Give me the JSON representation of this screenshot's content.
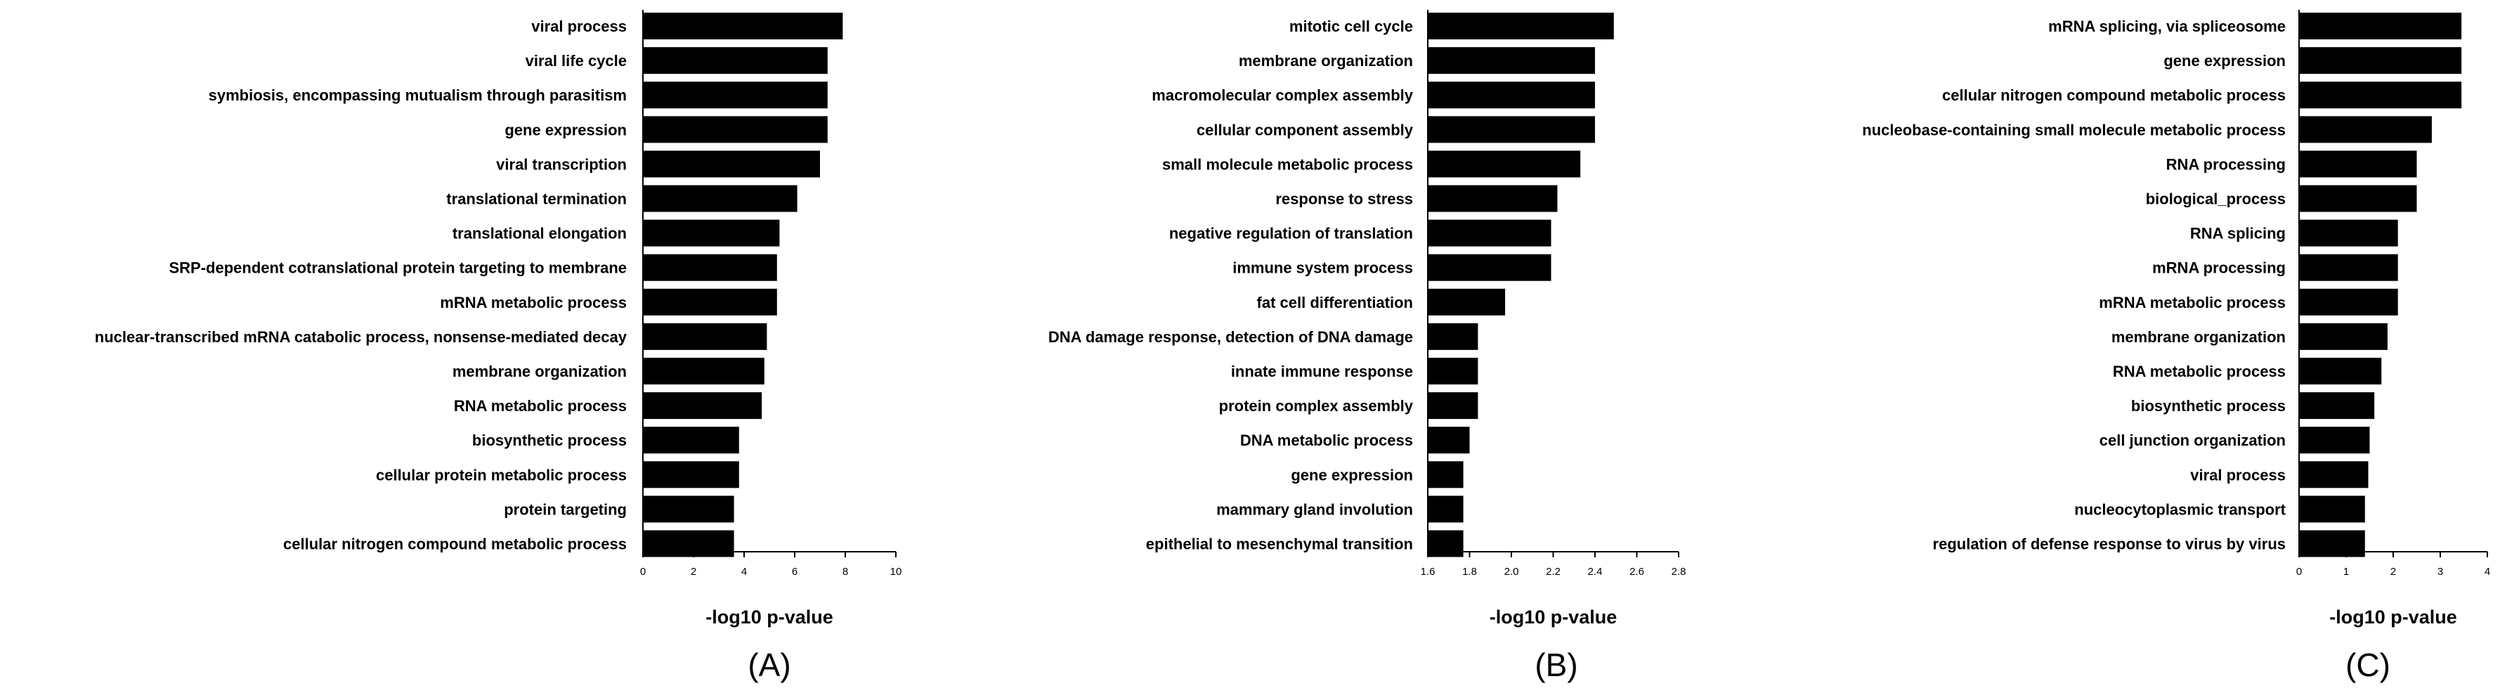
{
  "chart_data": [
    {
      "type": "bar",
      "orientation": "horizontal",
      "panel_label": "(A)",
      "xlabel": "-log10 p-value",
      "xlim": [
        0,
        10
      ],
      "xticks": [
        "0",
        "2",
        "4",
        "6",
        "8",
        "10"
      ],
      "categories": [
        "viral process",
        "viral life cycle",
        "symbiosis, encompassing mutualism through parasitism",
        "gene expression",
        "viral transcription",
        "translational termination",
        "translational elongation",
        "SRP-dependent cotranslational protein targeting to membrane",
        "mRNA metabolic process",
        "nuclear-transcribed mRNA catabolic process, nonsense-mediated decay",
        "membrane organization",
        "RNA metabolic process",
        "biosynthetic process",
        "cellular protein metabolic process",
        "protein targeting",
        "cellular nitrogen compound metabolic process"
      ],
      "values": [
        7.9,
        7.3,
        7.3,
        7.3,
        7.0,
        6.1,
        5.4,
        5.3,
        5.3,
        4.9,
        4.8,
        4.7,
        3.8,
        3.8,
        3.6,
        3.6
      ]
    },
    {
      "type": "bar",
      "orientation": "horizontal",
      "panel_label": "(B)",
      "xlabel": "-log10 p-value",
      "xlim": [
        1.6,
        2.8
      ],
      "xticks": [
        "1.6",
        "1.8",
        "2.0",
        "2.2",
        "2.4",
        "2.6",
        "2.8"
      ],
      "categories": [
        "mitotic cell cycle",
        "membrane organization",
        "macromolecular complex assembly",
        "cellular component assembly",
        "small molecule metabolic process",
        "response to stress",
        "negative regulation of translation",
        "immune system process",
        "fat cell differentiation",
        "DNA damage response, detection of DNA damage",
        "innate immune response",
        "protein complex assembly",
        "DNA metabolic process",
        "gene expression",
        "mammary gland involution",
        "epithelial to mesenchymal transition"
      ],
      "values": [
        2.49,
        2.4,
        2.4,
        2.4,
        2.33,
        2.22,
        2.19,
        2.19,
        1.97,
        1.84,
        1.84,
        1.84,
        1.8,
        1.77,
        1.77,
        1.77
      ]
    },
    {
      "type": "bar",
      "orientation": "horizontal",
      "panel_label": "(C)",
      "xlabel": "-log10 p-value",
      "xlim": [
        0,
        4
      ],
      "xticks": [
        "0",
        "1",
        "2",
        "3",
        "4"
      ],
      "categories": [
        "mRNA splicing, via spliceosome",
        "gene expression",
        "cellular nitrogen compound metabolic process",
        "nucleobase-containing small molecule metabolic process",
        "RNA processing",
        "biological_process",
        "RNA splicing",
        "mRNA processing",
        "mRNA metabolic process",
        "membrane organization",
        "RNA metabolic process",
        "biosynthetic process",
        "cell junction organization",
        "viral process",
        "nucleocytoplasmic transport",
        "regulation of defense response to virus by virus"
      ],
      "values": [
        3.45,
        3.45,
        3.45,
        2.82,
        2.5,
        2.5,
        2.1,
        2.1,
        2.1,
        1.88,
        1.75,
        1.6,
        1.5,
        1.47,
        1.4,
        1.4
      ]
    }
  ]
}
